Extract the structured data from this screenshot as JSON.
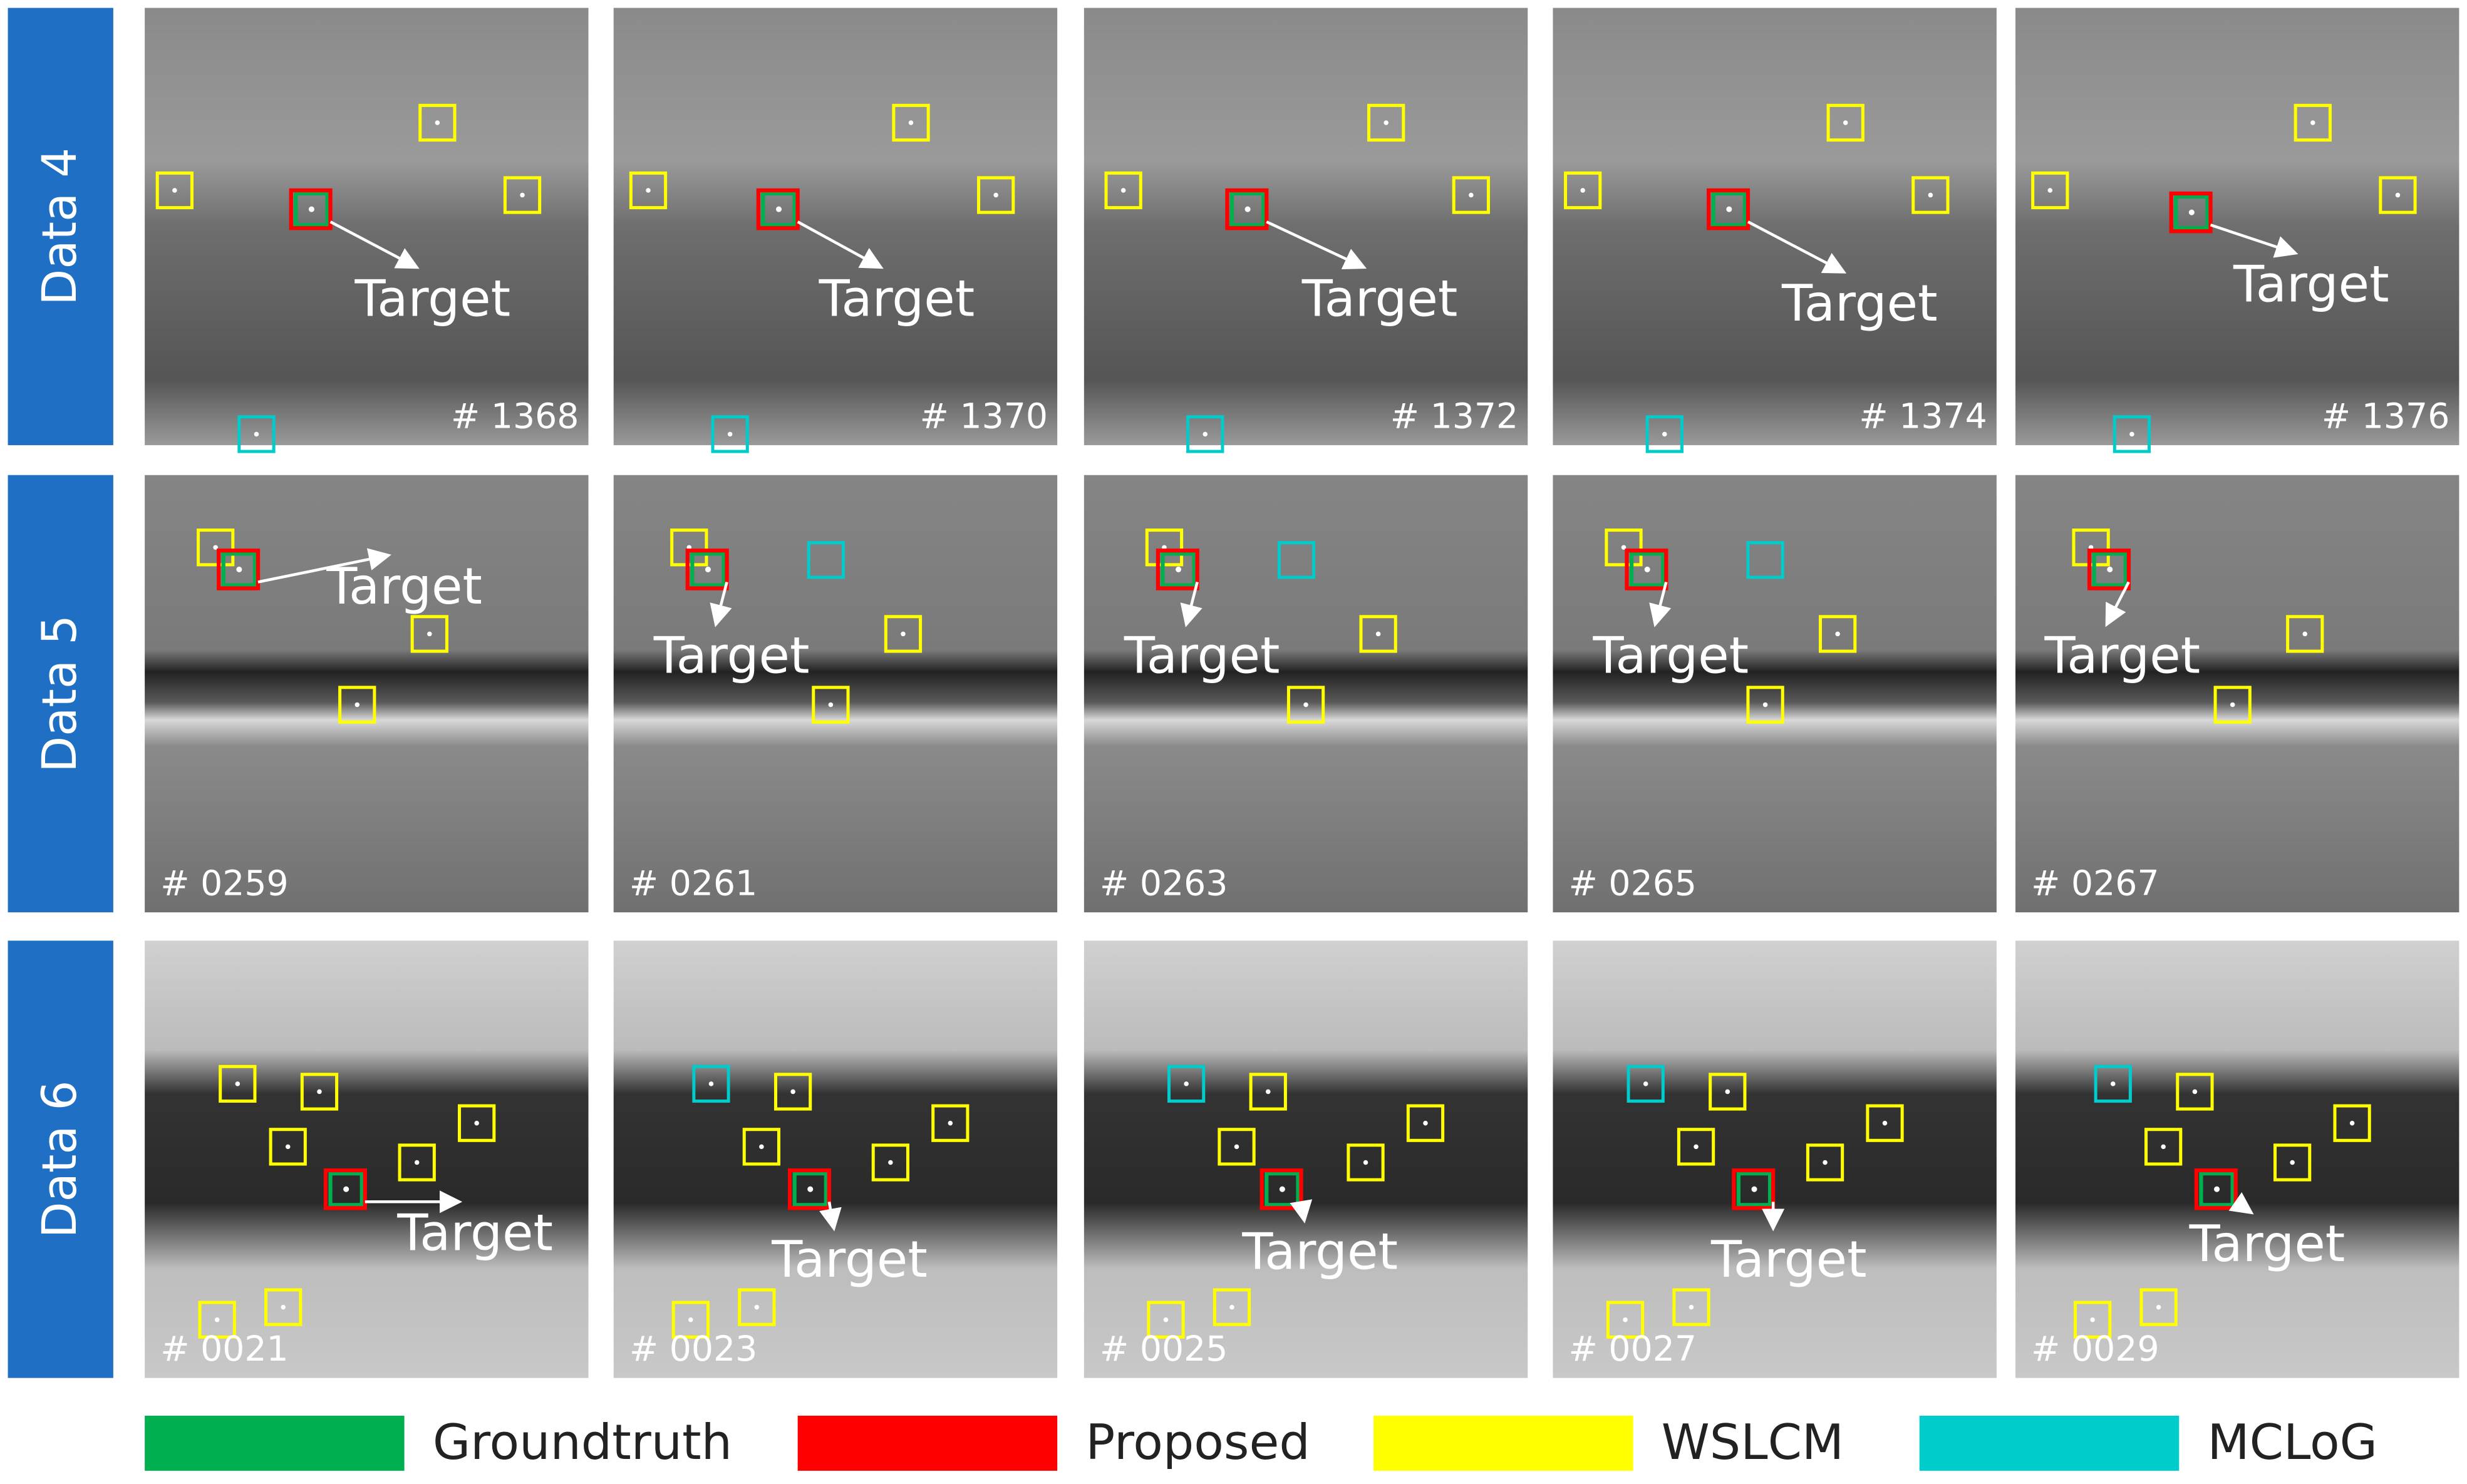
{
  "rows": [
    {
      "label": "Data 4",
      "frames": [
        "# 1368",
        "# 1370",
        "# 1372",
        "# 1374",
        "# 1376"
      ]
    },
    {
      "label": "Data 5",
      "frames": [
        "# 0259",
        "# 0261",
        "# 0263",
        "# 0265",
        "# 0267"
      ]
    },
    {
      "label": "Data 6",
      "frames": [
        "# 0021",
        "# 0023",
        "# 0025",
        "# 0027",
        "# 0029"
      ]
    }
  ],
  "target": "Target",
  "legend": [
    {
      "name": "Groundtruth",
      "color": "#00b050"
    },
    {
      "name": "Proposed",
      "color": "#ff0000"
    },
    {
      "name": "WSLCM",
      "color": "#ffff00"
    },
    {
      "name": "MCLoG",
      "color": "#00cccc"
    }
  ]
}
